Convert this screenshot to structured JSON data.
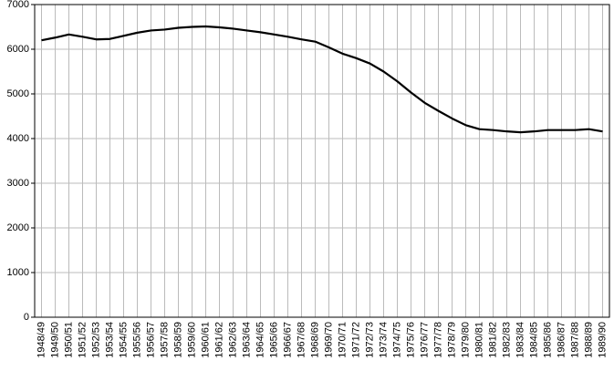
{
  "chart_data": {
    "type": "line",
    "categories": [
      "1948/49",
      "1949/50",
      "1950/51",
      "1951/52",
      "1952/53",
      "1953/54",
      "1954/55",
      "1955/56",
      "1956/57",
      "1957/58",
      "1958/59",
      "1959/60",
      "1960/61",
      "1961/62",
      "1962/63",
      "1963/64",
      "1964/65",
      "1965/66",
      "1966/67",
      "1967/68",
      "1968/69",
      "1969/70",
      "1970/71",
      "1971/72",
      "1972/73",
      "1973/74",
      "1974/75",
      "1975/76",
      "1976/77",
      "1977/78",
      "1978/79",
      "1979/80",
      "1980/81",
      "1981/82",
      "1982/83",
      "1983/84",
      "1984/85",
      "1985/86",
      "1986/87",
      "1987/88",
      "1988/89",
      "1989/90"
    ],
    "values": [
      6200,
      6260,
      6330,
      6280,
      6220,
      6230,
      6300,
      6370,
      6420,
      6440,
      6480,
      6500,
      6510,
      6490,
      6460,
      6420,
      6380,
      6330,
      6280,
      6220,
      6170,
      6040,
      5900,
      5800,
      5680,
      5500,
      5280,
      5030,
      4800,
      4620,
      4450,
      4300,
      4210,
      4190,
      4160,
      4140,
      4160,
      4190,
      4190,
      4190,
      4210,
      4160
    ],
    "color": "#000000",
    "ylim": [
      0,
      7000
    ],
    "yticks": [
      0,
      1000,
      2000,
      3000,
      4000,
      5000,
      6000,
      7000
    ],
    "grid": true
  }
}
